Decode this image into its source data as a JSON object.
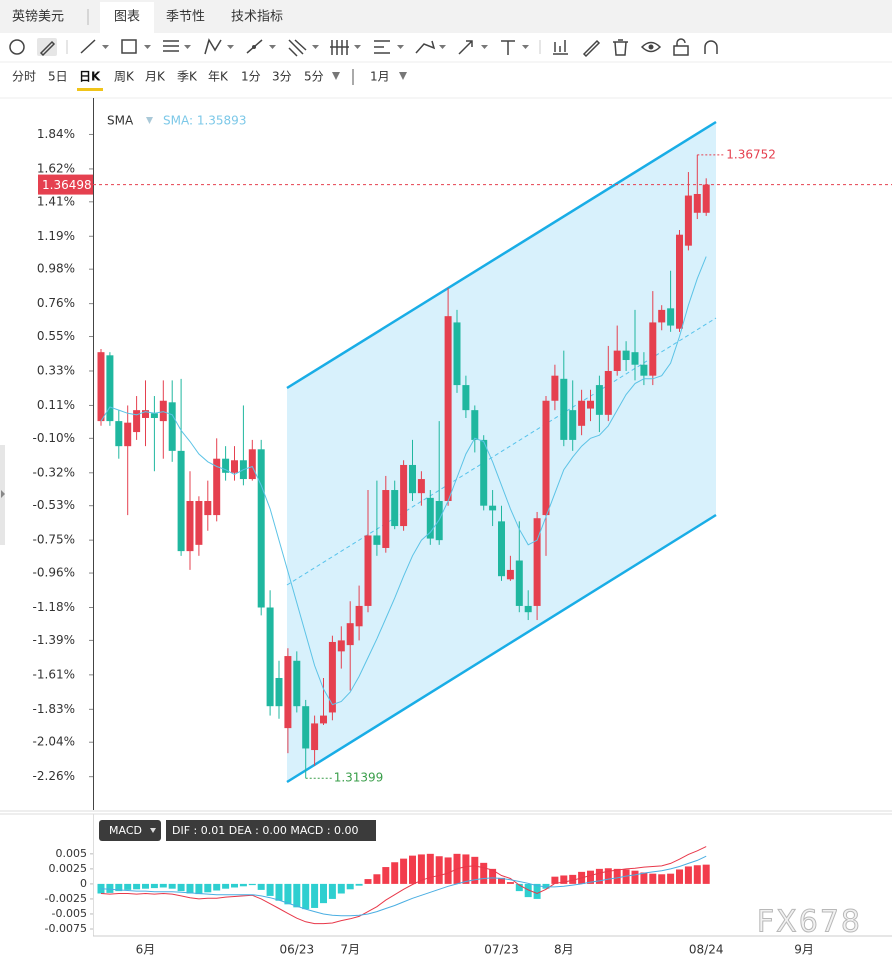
{
  "header": {
    "symbol": "英镑美元",
    "tabs": [
      "图表",
      "季节性",
      "技术指标"
    ]
  },
  "periods": [
    "分时",
    "5日",
    "日K",
    "周K",
    "月K",
    "季K",
    "年K",
    "1分",
    "3分",
    "5分"
  ],
  "range": "1月",
  "watermark": "FX678",
  "chart_data": [
    {
      "type": "candlestick",
      "indicator": "SMA",
      "indicator_value": "SMA: 1.35893",
      "current_price": "1.36498",
      "high_label": "1.36752",
      "low_label": "1.31399",
      "up_color": "#e5404f",
      "down_color": "#1fb79f",
      "categories": [
        null,
        null,
        null,
        null,
        null,
        "6月",
        null,
        null,
        null,
        null,
        null,
        null,
        null,
        null,
        null,
        null,
        null,
        null,
        null,
        null,
        null,
        null,
        "06/23",
        null,
        null,
        null,
        null,
        null,
        "7月",
        null,
        null,
        null,
        null,
        null,
        null,
        null,
        null,
        null,
        null,
        null,
        null,
        null,
        null,
        null,
        null,
        "07/23",
        null,
        null,
        null,
        null,
        null,
        null,
        "8月",
        null,
        null,
        null,
        null,
        null,
        null,
        null,
        null,
        null,
        null,
        null,
        null,
        null,
        null,
        null,
        "08/24",
        null,
        null,
        null,
        null,
        null,
        null,
        null,
        null,
        null,
        null,
        "9月"
      ],
      "open": [
        0.01,
        0.43,
        0.01,
        -0.15,
        -0.06,
        0.03,
        0.06,
        0.01,
        0.13,
        -0.18,
        -0.82,
        -0.78,
        -0.59,
        -0.59,
        -0.23,
        -0.32,
        -0.24,
        -0.36,
        -0.17,
        -1.18,
        -1.63,
        -1.95,
        -1.52,
        -1.81,
        -2.09,
        -1.92,
        -1.85,
        -1.46,
        -1.42,
        -1.3,
        -1.17,
        -0.72,
        -0.8,
        -0.43,
        -0.66,
        -0.27,
        -0.45,
        -0.48,
        -0.5,
        -0.5,
        0.64,
        0.24,
        0.08,
        -0.11,
        -0.53,
        -0.63,
        -1.0,
        -0.88,
        -1.17,
        -1.17,
        -0.59,
        0.14,
        0.28,
        0.08,
        -0.02,
        0.09,
        0.24,
        0.05,
        0.33,
        0.46,
        0.45,
        0.37,
        0.3,
        0.64,
        0.73,
        0.6,
        1.13,
        1.34,
        1.34,
        null,
        null,
        null,
        null,
        null,
        null,
        null,
        null,
        null,
        null,
        null
      ],
      "high": [
        0.47,
        0.45,
        0.08,
        0.11,
        0.17,
        0.27,
        0.17,
        0.27,
        0.27,
        0.28,
        -0.31,
        -0.47,
        -0.37,
        -0.1,
        -0.15,
        -0.15,
        0.11,
        -0.11,
        -0.11,
        -1.07,
        -1.52,
        -1.44,
        -1.46,
        -1.77,
        -1.87,
        -1.63,
        -1.36,
        -1.3,
        -1.14,
        -1.04,
        -0.43,
        -0.37,
        -0.34,
        -0.37,
        -0.24,
        -0.11,
        -0.31,
        -0.43,
        0.01,
        0.86,
        0.72,
        0.3,
        0.11,
        -0.08,
        -0.43,
        -0.53,
        -0.85,
        -0.63,
        -1.07,
        -0.57,
        0.17,
        0.37,
        0.46,
        0.27,
        0.21,
        0.21,
        0.3,
        0.49,
        0.62,
        0.52,
        0.72,
        0.45,
        0.84,
        0.75,
        0.97,
        1.23,
        1.6,
        1.71,
        1.56,
        null,
        null,
        null,
        null,
        null,
        null,
        null,
        null,
        null,
        null,
        null
      ],
      "low": [
        -0.02,
        -0.02,
        -0.23,
        -0.59,
        -0.11,
        -0.15,
        -0.31,
        -0.23,
        -0.25,
        -0.85,
        -0.94,
        -0.85,
        -0.69,
        -0.63,
        -0.37,
        -0.37,
        -0.4,
        -0.37,
        -1.23,
        -1.87,
        -1.89,
        -2.11,
        -1.85,
        -2.27,
        -2.19,
        -1.93,
        -1.9,
        -1.57,
        -1.71,
        -1.39,
        -1.21,
        -0.85,
        -0.83,
        -0.68,
        -0.69,
        -0.5,
        -0.53,
        -0.78,
        -0.78,
        -0.53,
        0.19,
        0.03,
        -0.19,
        -0.56,
        -0.66,
        -1.01,
        -1.01,
        -1.21,
        -1.26,
        -1.26,
        -0.85,
        0.08,
        -0.15,
        -0.18,
        -0.08,
        0.01,
        -0.06,
        0.01,
        0.3,
        0.33,
        0.27,
        0.24,
        0.24,
        0.59,
        0.58,
        0.58,
        1.1,
        1.3,
        1.32,
        null,
        null,
        null,
        null,
        null,
        null,
        null,
        null,
        null,
        null,
        null
      ],
      "close": [
        0.45,
        0.01,
        -0.15,
        0.0,
        0.08,
        0.08,
        0.03,
        0.14,
        -0.18,
        -0.82,
        -0.5,
        -0.5,
        -0.5,
        -0.23,
        -0.32,
        -0.24,
        -0.36,
        -0.17,
        -1.18,
        -1.81,
        -1.81,
        -1.49,
        -1.81,
        -2.08,
        -1.92,
        -1.87,
        -1.4,
        -1.39,
        -1.28,
        -1.17,
        -0.72,
        -0.78,
        -0.43,
        -0.66,
        -0.27,
        -0.45,
        -0.36,
        -0.74,
        -0.75,
        0.68,
        0.24,
        0.08,
        -0.11,
        -0.53,
        -0.56,
        -0.98,
        -0.94,
        -1.17,
        -1.21,
        -0.61,
        0.14,
        0.3,
        -0.11,
        -0.11,
        0.14,
        0.14,
        0.05,
        0.33,
        0.46,
        0.4,
        0.37,
        0.3,
        0.64,
        0.72,
        0.62,
        1.2,
        1.45,
        1.46,
        1.52,
        null,
        null,
        null,
        null,
        null,
        null,
        null,
        null,
        null,
        null,
        null
      ],
      "series": [
        {
          "name": "SMA",
          "color": "#5cc3e6",
          "values": [
            0.01,
            0.1,
            0.08,
            0.06,
            0.05,
            0.07,
            0.06,
            0.07,
            0.05,
            -0.05,
            -0.12,
            -0.2,
            -0.25,
            -0.28,
            -0.3,
            -0.33,
            -0.3,
            -0.28,
            -0.4,
            -0.55,
            -0.75,
            -0.95,
            -1.15,
            -1.35,
            -1.55,
            -1.7,
            -1.8,
            -1.78,
            -1.72,
            -1.62,
            -1.5,
            -1.38,
            -1.25,
            -1.12,
            -0.98,
            -0.85,
            -0.75,
            -0.7,
            -0.62,
            -0.5,
            -0.35,
            -0.2,
            -0.1,
            -0.12,
            -0.25,
            -0.4,
            -0.55,
            -0.68,
            -0.78,
            -0.75,
            -0.6,
            -0.45,
            -0.3,
            -0.22,
            -0.15,
            -0.1,
            -0.08,
            -0.02,
            0.08,
            0.18,
            0.25,
            0.28,
            0.28,
            0.3,
            0.38,
            0.55,
            0.75,
            0.92,
            1.06,
            null,
            null,
            null,
            null,
            null,
            null,
            null,
            null,
            null,
            null,
            null
          ]
        }
      ],
      "ylim": [
        -2.46,
        2.06
      ],
      "yticks": [
        {
          "value": 1.84,
          "label": "1.84%"
        },
        {
          "value": 1.62,
          "label": "1.62%"
        },
        {
          "value": 1.41,
          "label": "1.41%"
        },
        {
          "value": 1.19,
          "label": "1.19%"
        },
        {
          "value": 0.98,
          "label": "0.98%"
        },
        {
          "value": 0.76,
          "label": "0.76%"
        },
        {
          "value": 0.55,
          "label": "0.55%"
        },
        {
          "value": 0.33,
          "label": "0.33%"
        },
        {
          "value": 0.11,
          "label": "0.11%"
        },
        {
          "value": -0.1,
          "label": "-0.10%"
        },
        {
          "value": -0.32,
          "label": "-0.32%"
        },
        {
          "value": -0.53,
          "label": "-0.53%"
        },
        {
          "value": -0.75,
          "label": "-0.75%"
        },
        {
          "value": -0.96,
          "label": "-0.96%"
        },
        {
          "value": -1.18,
          "label": "-1.18%"
        },
        {
          "value": -1.39,
          "label": "-1.39%"
        },
        {
          "value": -1.61,
          "label": "-1.61%"
        },
        {
          "value": -1.83,
          "label": "-1.83%"
        },
        {
          "value": -2.04,
          "label": "-2.04%"
        },
        {
          "value": -2.26,
          "label": "-2.26%"
        }
      ]
    },
    {
      "type": "macd",
      "button": "MACD",
      "readout": "DIF : 0.01  DEA : 0.00  MACD : 0.00",
      "series": [
        {
          "name": "MACD",
          "color": "#f23c4c",
          "negative_color": "#2ecfd0",
          "values": [
            -0.0016,
            -0.0015,
            -0.0012,
            -0.001,
            -0.0009,
            -0.0008,
            -0.0007,
            -0.0006,
            -0.0008,
            -0.0012,
            -0.0016,
            -0.0017,
            -0.0014,
            -0.0011,
            -0.0008,
            -0.0006,
            -0.0004,
            -0.0002,
            -0.001,
            -0.002,
            -0.0028,
            -0.0034,
            -0.0039,
            -0.0042,
            -0.004,
            -0.0032,
            -0.0025,
            -0.0016,
            -0.0009,
            -0.0003,
            0.0008,
            0.0016,
            0.0028,
            0.0036,
            0.0042,
            0.0047,
            0.0049,
            0.005,
            0.0046,
            0.0044,
            0.005,
            0.0049,
            0.0045,
            0.0035,
            0.0025,
            0.001,
            0.0003,
            -0.0012,
            -0.0022,
            -0.0025,
            -0.0008,
            0.0012,
            0.0014,
            0.0015,
            0.002,
            0.0022,
            0.0025,
            0.0026,
            0.0025,
            0.0024,
            0.0022,
            0.0019,
            0.0017,
            0.0016,
            0.0017,
            0.0024,
            0.0029,
            0.0031,
            0.0032,
            null,
            null,
            null,
            null,
            null,
            null,
            null,
            null,
            null,
            null,
            null
          ]
        },
        {
          "name": "DIF",
          "color": "#e8384a",
          "values": [
            -0.0016,
            -0.0017,
            -0.0016,
            -0.0016,
            -0.0017,
            -0.0016,
            -0.0017,
            -0.0016,
            -0.0017,
            -0.002,
            -0.0023,
            -0.0025,
            -0.0024,
            -0.0024,
            -0.0022,
            -0.0021,
            -0.002,
            -0.0019,
            -0.0025,
            -0.0033,
            -0.0041,
            -0.0049,
            -0.0057,
            -0.0063,
            -0.0066,
            -0.0066,
            -0.0065,
            -0.0061,
            -0.0058,
            -0.0054,
            -0.0046,
            -0.0038,
            -0.0027,
            -0.0018,
            -0.0009,
            -0.0001,
            0.0006,
            0.0011,
            0.0014,
            0.0018,
            0.0025,
            0.0029,
            0.003,
            0.0027,
            0.0023,
            0.0014,
            0.0009,
            -0.0002,
            -0.001,
            -0.0016,
            -0.0009,
            0.0001,
            0.0003,
            0.0006,
            0.001,
            0.0014,
            0.0018,
            0.0021,
            0.0023,
            0.0025,
            0.0026,
            0.0028,
            0.0029,
            0.003,
            0.0034,
            0.0041,
            0.0049,
            0.0055,
            0.0062,
            null,
            null,
            null,
            null,
            null,
            null,
            null,
            null,
            null,
            null,
            null
          ]
        },
        {
          "name": "DEA",
          "color": "#4aaee2",
          "values": [
            -0.0008,
            -0.0009,
            -0.001,
            -0.0011,
            -0.0012,
            -0.0012,
            -0.0013,
            -0.0013,
            -0.0013,
            -0.0014,
            -0.0015,
            -0.0016,
            -0.0017,
            -0.0018,
            -0.0018,
            -0.0018,
            -0.0018,
            -0.0018,
            -0.002,
            -0.0023,
            -0.0027,
            -0.0032,
            -0.0037,
            -0.0042,
            -0.0046,
            -0.005,
            -0.0052,
            -0.0053,
            -0.0053,
            -0.0052,
            -0.005,
            -0.0046,
            -0.0041,
            -0.0036,
            -0.003,
            -0.0024,
            -0.0019,
            -0.0014,
            -0.0009,
            -0.0004,
            0,
            0.0004,
            0.0007,
            0.0009,
            0.001,
            0.0009,
            0.0007,
            0.0004,
            0.0001,
            -0.0003,
            -0.0005,
            -0.0005,
            -0.0004,
            -0.0002,
            0,
            0.0003,
            0.0005,
            0.0008,
            0.001,
            0.0013,
            0.0015,
            0.0018,
            0.002,
            0.0022,
            0.0025,
            0.0029,
            0.0034,
            0.0039,
            0.0046,
            null,
            null,
            null,
            null,
            null,
            null,
            null,
            null,
            null,
            null,
            null
          ]
        }
      ],
      "ylim": [
        -0.0085,
        0.0073
      ],
      "yticks": [
        0.005,
        0.0025,
        0,
        -0.0025,
        -0.005,
        -0.0075
      ]
    }
  ]
}
